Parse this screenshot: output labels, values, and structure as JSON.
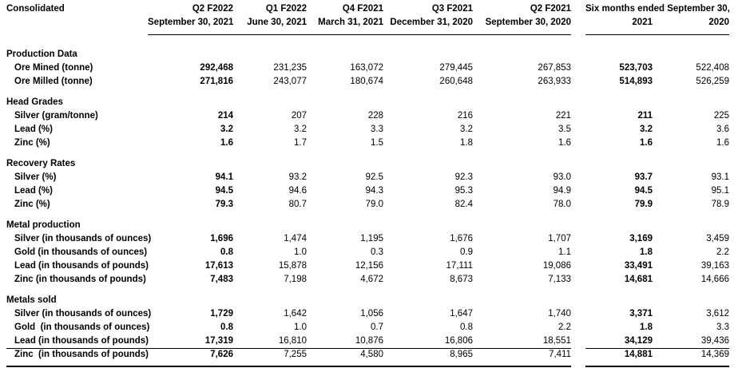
{
  "table": {
    "title_col_header": "Consolidated",
    "quarter_headers": [
      {
        "period": "Q2 F2022",
        "date": "September 30, 2021"
      },
      {
        "period": "Q1 F2022",
        "date": "June 30, 2021"
      },
      {
        "period": "Q4 F2021",
        "date": "March 31, 2021"
      },
      {
        "period": "Q3 F2021",
        "date": "December 31, 2020"
      },
      {
        "period": "Q2 F2021",
        "date": "September 30, 2020"
      }
    ],
    "six_months_header": {
      "label": "Six months ended September 30,",
      "years": [
        "2021",
        "2020"
      ]
    },
    "bold_value_columns": [
      0,
      5
    ],
    "sections": [
      {
        "title": "Production Data",
        "rows": [
          {
            "label": "Ore Mined (tonne)",
            "values": [
              "292,468",
              "231,235",
              "163,072",
              "279,445",
              "267,853",
              "523,703",
              "522,408"
            ]
          },
          {
            "label": "Ore Milled (tonne)",
            "values": [
              "271,816",
              "243,077",
              "180,674",
              "260,648",
              "263,933",
              "514,893",
              "526,259"
            ]
          }
        ]
      },
      {
        "title": "Head Grades",
        "rows": [
          {
            "label": "Silver (gram/tonne)",
            "values": [
              "214",
              "207",
              "228",
              "216",
              "221",
              "211",
              "225"
            ]
          },
          {
            "label": "Lead (%)",
            "values": [
              "3.2",
              "3.2",
              "3.3",
              "3.2",
              "3.5",
              "3.2",
              "3.6"
            ]
          },
          {
            "label": "Zinc (%)",
            "values": [
              "1.6",
              "1.7",
              "1.5",
              "1.8",
              "1.6",
              "1.6",
              "1.6"
            ]
          }
        ]
      },
      {
        "title": "Recovery Rates",
        "rows": [
          {
            "label": "Silver (%)",
            "values": [
              "94.1",
              "93.2",
              "92.5",
              "92.3",
              "93.0",
              "93.7",
              "93.1"
            ]
          },
          {
            "label": "Lead (%)",
            "values": [
              "94.5",
              "94.6",
              "94.3",
              "95.3",
              "94.9",
              "94.5",
              "95.1"
            ]
          },
          {
            "label": "Zinc (%)",
            "values": [
              "79.3",
              "80.7",
              "79.0",
              "82.4",
              "78.0",
              "79.9",
              "78.9"
            ]
          }
        ]
      },
      {
        "title": "Metal production",
        "rows": [
          {
            "label": "Silver (in thousands of ounces)",
            "values": [
              "1,696",
              "1,474",
              "1,195",
              "1,676",
              "1,707",
              "3,169",
              "3,459"
            ]
          },
          {
            "label": "Gold (in thousands of ounces)",
            "values": [
              "0.8",
              "1.0",
              "0.3",
              "0.9",
              "1.1",
              "1.8",
              "2.2"
            ]
          },
          {
            "label": "Lead (in thousands of pounds)",
            "values": [
              "17,613",
              "15,878",
              "12,156",
              "17,111",
              "19,086",
              "33,491",
              "39,163"
            ]
          },
          {
            "label": "Zinc (in thousands of pounds)",
            "values": [
              "7,483",
              "7,198",
              "4,672",
              "8,673",
              "7,133",
              "14,681",
              "14,666"
            ]
          }
        ]
      },
      {
        "title": "Metals sold",
        "rows": [
          {
            "label": "Silver (in thousands of ounces)",
            "values": [
              "1,729",
              "1,642",
              "1,056",
              "1,647",
              "1,740",
              "3,371",
              "3,612"
            ]
          },
          {
            "label": "Gold  (in thousands of ounces)",
            "values": [
              "0.8",
              "1.0",
              "0.7",
              "0.8",
              "2.2",
              "1.8",
              "3.3"
            ]
          },
          {
            "label": "Lead (in thousands of pounds)",
            "values": [
              "17,319",
              "16,810",
              "10,876",
              "16,806",
              "18,551",
              "34,129",
              "39,436"
            ]
          },
          {
            "label": "Zinc  (in thousands of pounds)",
            "values": [
              "7,626",
              "7,255",
              "4,580",
              "8,965",
              "7,411",
              "14,881",
              "14,369"
            ]
          }
        ]
      }
    ]
  },
  "colors": {
    "text": "#000000",
    "background": "#ffffff",
    "rule": "#000000"
  }
}
